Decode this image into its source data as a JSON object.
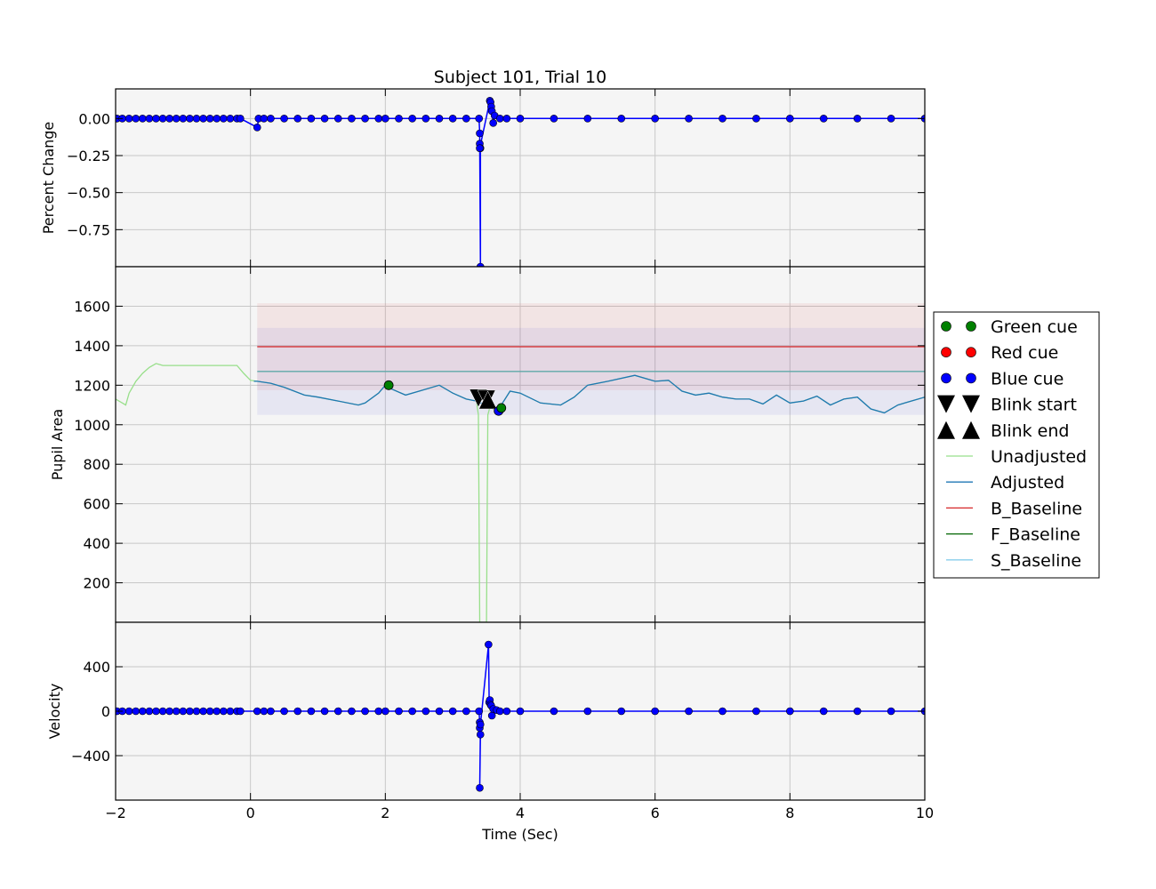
{
  "chart_data": {
    "type": "line",
    "title": "Subject 101, Trial 10",
    "xlabel": "Time (Sec)",
    "xlim": [
      -2,
      10
    ],
    "x_ticks": [
      "−2",
      "0",
      "2",
      "4",
      "6",
      "8",
      "10"
    ],
    "x_tick_values": [
      -2,
      0,
      2,
      4,
      6,
      8,
      10
    ],
    "grid": true,
    "legend_position": "right",
    "legend": [
      {
        "label": "Green cue",
        "kind": "circle",
        "color": "#008000"
      },
      {
        "label": "Red cue",
        "kind": "circle",
        "color": "#ff0000"
      },
      {
        "label": "Blue cue",
        "kind": "circle",
        "color": "#0000ff"
      },
      {
        "label": "Blink start",
        "kind": "triangle-down",
        "color": "#000000"
      },
      {
        "label": "Blink end",
        "kind": "triangle-up",
        "color": "#000000"
      },
      {
        "label": "Unadjusted",
        "kind": "line",
        "color": "#98df8a"
      },
      {
        "label": "Adjusted",
        "kind": "line",
        "color": "#1f77b4"
      },
      {
        "label": "B_Baseline",
        "kind": "line",
        "color": "#d62728"
      },
      {
        "label": "F_Baseline",
        "kind": "line",
        "color": "#006400"
      },
      {
        "label": "S_Baseline",
        "kind": "line",
        "color": "#87ceeb"
      }
    ],
    "panels": [
      {
        "name": "percent-change",
        "ylabel": "Percent Change",
        "ylim": [
          -1.0,
          0.2
        ],
        "y_ticks": [
          "0.00",
          "−0.25",
          "−0.50",
          "−0.75"
        ],
        "y_tick_values": [
          0.0,
          -0.25,
          -0.5,
          -0.75
        ],
        "series": [
          {
            "type": "line-marker",
            "color": "#0000ff",
            "x": [
              -1.98,
              -1.9,
              -1.8,
              -1.7,
              -1.6,
              -1.5,
              -1.4,
              -1.3,
              -1.2,
              -1.1,
              -1.0,
              -0.9,
              -0.8,
              -0.7,
              -0.6,
              -0.5,
              -0.4,
              -0.3,
              -0.2,
              -0.15,
              0.1,
              0.12,
              0.2,
              0.3,
              0.5,
              0.7,
              0.9,
              1.1,
              1.3,
              1.5,
              1.7,
              1.9,
              2.0,
              2.2,
              2.4,
              2.6,
              2.8,
              3.0,
              3.2,
              3.39,
              3.4,
              3.4,
              3.41,
              3.41,
              3.4,
              3.55,
              3.56,
              3.57,
              3.58,
              3.6,
              3.62,
              3.7,
              3.8,
              4.0,
              4.5,
              5.0,
              5.5,
              6.0,
              6.5,
              7.0,
              7.5,
              8.0,
              8.5,
              9.0,
              9.5,
              10.0
            ],
            "y": [
              0.0,
              0.0,
              0.0,
              0.0,
              0.0,
              0.0,
              0.0,
              0.0,
              0.0,
              0.0,
              0.0,
              0.0,
              0.0,
              0.0,
              0.0,
              0.0,
              0.0,
              0.0,
              0.0,
              0.0,
              -0.06,
              0.0,
              0.0,
              0.0,
              0.0,
              0.0,
              0.0,
              0.0,
              0.0,
              0.0,
              0.0,
              0.0,
              0.0,
              0.0,
              0.0,
              0.0,
              0.0,
              0.0,
              0.0,
              0.0,
              -0.1,
              -0.17,
              -0.2,
              -1.0,
              -0.2,
              0.12,
              0.11,
              0.08,
              0.05,
              -0.03,
              0.02,
              0.0,
              0.0,
              0.0,
              0.0,
              0.0,
              0.0,
              0.0,
              0.0,
              0.0,
              0.0,
              0.0,
              0.0,
              0.0,
              0.0,
              0.0
            ]
          }
        ]
      },
      {
        "name": "pupil-area",
        "ylabel": "Pupil Area",
        "ylim": [
          0,
          1800
        ],
        "y_ticks": [
          "200",
          "400",
          "600",
          "800",
          "1000",
          "1200",
          "1400",
          "1600"
        ],
        "y_tick_values": [
          200,
          400,
          600,
          800,
          1000,
          1200,
          1400,
          1600
        ],
        "bands": [
          {
            "series": "B_Baseline",
            "x": [
              0.1,
              10
            ],
            "center": 1395,
            "low": 1175,
            "high": 1615,
            "color": "#d62728"
          },
          {
            "series": "S_Baseline",
            "x": [
              0.1,
              10
            ],
            "center": 1270,
            "low": 1050,
            "high": 1490,
            "color": "#3b3bd6"
          }
        ],
        "series": [
          {
            "name": "Unadjusted",
            "color": "#98df8a",
            "x": [
              -2.0,
              -1.9,
              -1.85,
              -1.8,
              -1.7,
              -1.6,
              -1.5,
              -1.4,
              -1.35,
              -1.3,
              -1.2,
              -1.0,
              -0.8,
              -0.6,
              -0.4,
              -0.2,
              -0.1,
              0.0,
              0.1,
              0.3,
              0.5,
              0.8,
              1.0,
              1.3,
              1.6,
              1.7,
              1.9,
              2.0,
              2.1,
              2.3,
              2.5,
              2.8,
              3.0,
              3.2,
              3.35,
              3.38,
              3.4,
              3.42,
              3.5,
              3.52,
              3.56,
              3.6,
              3.7,
              3.85,
              4.0,
              4.3,
              4.6,
              4.8,
              5.0,
              5.3,
              5.7,
              6.0,
              6.2,
              6.4,
              6.6,
              6.8,
              7.0,
              7.2,
              7.4,
              7.6,
              7.8,
              8.0,
              8.2,
              8.4,
              8.6,
              8.8,
              9.0,
              9.2,
              9.4,
              9.6,
              9.8,
              10.0
            ],
            "y": [
              1130,
              1110,
              1100,
              1160,
              1220,
              1260,
              1290,
              1310,
              1305,
              1300,
              1300,
              1300,
              1300,
              1300,
              1300,
              1300,
              1260,
              1225,
              1220,
              1210,
              1190,
              1150,
              1140,
              1120,
              1100,
              1110,
              1160,
              1200,
              1180,
              1150,
              1170,
              1200,
              1160,
              1130,
              1120,
              1050,
              0,
              0,
              0,
              1050,
              1100,
              1080,
              1090,
              1170,
              1160,
              1110,
              1100,
              1140,
              1200,
              1220,
              1250,
              1220,
              1225,
              1170,
              1150,
              1160,
              1140,
              1130,
              1130,
              1105,
              1150,
              1110,
              1120,
              1145,
              1100,
              1130,
              1140,
              1080,
              1060,
              1100,
              1120,
              1140
            ]
          },
          {
            "name": "Adjusted",
            "color": "#1f77b4",
            "x": [
              0.05,
              0.1,
              0.3,
              0.5,
              0.8,
              1.0,
              1.3,
              1.6,
              1.7,
              1.9,
              2.0,
              2.1,
              2.3,
              2.5,
              2.8,
              3.0,
              3.2,
              3.35,
              3.4,
              3.5,
              3.56,
              3.6,
              3.7,
              3.85,
              4.0,
              4.3,
              4.6,
              4.8,
              5.0,
              5.3,
              5.7,
              6.0,
              6.2,
              6.4,
              6.6,
              6.8,
              7.0,
              7.2,
              7.4,
              7.6,
              7.8,
              8.0,
              8.2,
              8.4,
              8.6,
              8.8,
              9.0,
              9.2,
              9.4,
              9.6,
              9.8,
              10.0
            ],
            "y": [
              1220,
              1220,
              1210,
              1190,
              1150,
              1140,
              1120,
              1100,
              1110,
              1160,
              1200,
              1180,
              1150,
              1170,
              1200,
              1160,
              1130,
              1120,
              1110,
              1105,
              1100,
              1080,
              1090,
              1170,
              1160,
              1110,
              1100,
              1140,
              1200,
              1220,
              1250,
              1220,
              1225,
              1170,
              1150,
              1160,
              1140,
              1130,
              1130,
              1105,
              1150,
              1110,
              1120,
              1145,
              1100,
              1130,
              1140,
              1080,
              1060,
              1100,
              1120,
              1140
            ]
          },
          {
            "name": "B_Baseline",
            "color": "#d62728",
            "x": [
              0.1,
              10.0
            ],
            "y": [
              1395,
              1395
            ]
          },
          {
            "name": "S_Baseline",
            "color": "#5fa8a8",
            "x": [
              0.1,
              10.0
            ],
            "y": [
              1270,
              1270
            ]
          }
        ],
        "markers": [
          {
            "kind": "circle",
            "color": "#008000",
            "x": 2.05,
            "y": 1200
          },
          {
            "kind": "triangle-down",
            "color": "#000000",
            "x": 3.38,
            "y": 1135
          },
          {
            "kind": "triangle-down",
            "color": "#000000",
            "x": 3.5,
            "y": 1130
          },
          {
            "kind": "triangle-up",
            "color": "#000000",
            "x": 3.52,
            "y": 1125
          },
          {
            "kind": "circle",
            "color": "#0000ff",
            "x": 3.68,
            "y": 1070
          },
          {
            "kind": "circle",
            "color": "#008000",
            "x": 3.72,
            "y": 1085
          }
        ]
      },
      {
        "name": "velocity",
        "ylabel": "Velocity",
        "ylim": [
          -800,
          800
        ],
        "y_ticks": [
          "400",
          "0",
          "−400"
        ],
        "y_tick_values": [
          400,
          0,
          -400
        ],
        "series": [
          {
            "type": "line-marker",
            "color": "#0000ff",
            "x": [
              -1.98,
              -1.9,
              -1.8,
              -1.7,
              -1.6,
              -1.5,
              -1.4,
              -1.3,
              -1.2,
              -1.1,
              -1.0,
              -0.9,
              -0.8,
              -0.7,
              -0.6,
              -0.5,
              -0.4,
              -0.3,
              -0.2,
              -0.15,
              0.1,
              0.2,
              0.3,
              0.5,
              0.7,
              0.9,
              1.1,
              1.3,
              1.5,
              1.7,
              1.9,
              2.0,
              2.2,
              2.4,
              2.6,
              2.8,
              3.0,
              3.2,
              3.39,
              3.4,
              3.4,
              3.41,
              3.4,
              3.41,
              3.53,
              3.54,
              3.55,
              3.56,
              3.57,
              3.58,
              3.6,
              3.65,
              3.7,
              3.8,
              4.0,
              4.5,
              5.0,
              5.5,
              6.0,
              6.5,
              7.0,
              7.5,
              8.0,
              8.5,
              9.0,
              9.5,
              10.0
            ],
            "y": [
              0,
              0,
              0,
              0,
              0,
              0,
              0,
              0,
              0,
              0,
              0,
              0,
              0,
              0,
              0,
              0,
              0,
              0,
              0,
              0,
              0,
              0,
              0,
              0,
              0,
              0,
              0,
              0,
              0,
              0,
              0,
              0,
              0,
              0,
              0,
              0,
              0,
              0,
              0,
              -100,
              -150,
              -210,
              -690,
              -120,
              600,
              80,
              100,
              60,
              50,
              -40,
              20,
              10,
              0,
              0,
              0,
              0,
              0,
              0,
              0,
              0,
              0,
              0,
              0,
              0,
              0,
              0,
              0
            ]
          }
        ]
      }
    ]
  }
}
